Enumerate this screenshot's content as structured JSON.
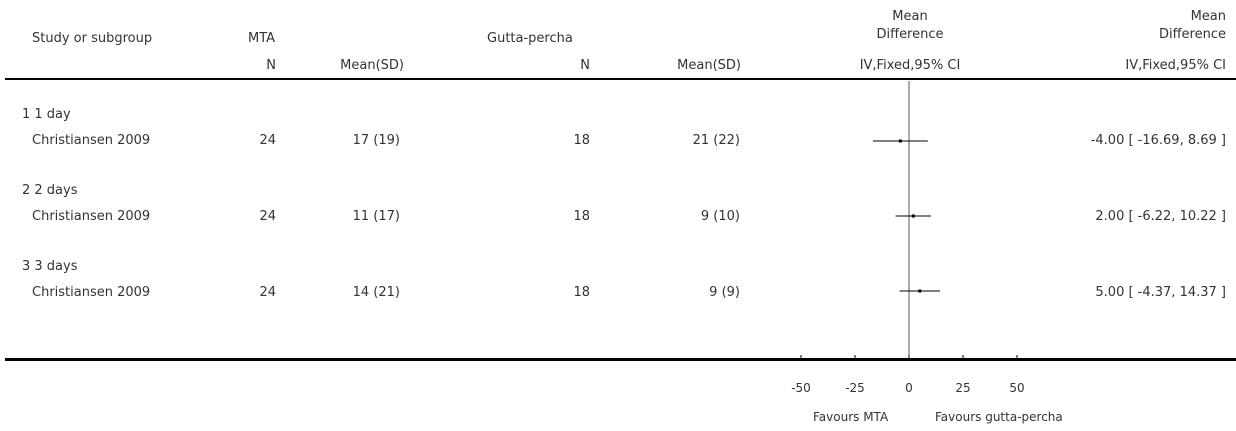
{
  "header": {
    "study_col": "Study or subgroup",
    "group1": "MTA",
    "group2": "Gutta-percha",
    "md_plot_title_1": "Mean",
    "md_plot_title_2": "Difference",
    "md_text_title_1": "Mean",
    "md_text_title_2": "Difference",
    "n1": "N",
    "mean1": "Mean(SD)",
    "n2": "N",
    "mean2": "Mean(SD)",
    "method_plot": "IV,Fixed,95% CI",
    "method_text": "IV,Fixed,95% CI"
  },
  "subgroups": [
    {
      "label": "1 1 day",
      "study": "Christiansen 2009",
      "n1": "24",
      "mean1": "17 (19)",
      "n2": "18",
      "mean2": "21 (22)",
      "ci_text": "-4.00 [ -16.69, 8.69 ]"
    },
    {
      "label": "2 2 days",
      "study": "Christiansen 2009",
      "n1": "24",
      "mean1": "11 (17)",
      "n2": "18",
      "mean2": "9 (10)",
      "ci_text": "2.00 [ -6.22, 10.22 ]"
    },
    {
      "label": "3 3 days",
      "study": "Christiansen 2009",
      "n1": "24",
      "mean1": "14 (21)",
      "n2": "18",
      "mean2": "9 (9)",
      "ci_text": "5.00 [ -4.37, 14.37 ]"
    }
  ],
  "footer": {
    "favours_left": "Favours MTA",
    "favours_right": "Favours gutta-percha"
  },
  "chart_data": {
    "type": "forest",
    "xlim": [
      -50,
      50
    ],
    "ticks": [
      -50,
      -25,
      0,
      25,
      50
    ],
    "tick_labels": [
      "-50",
      "-25",
      "0",
      "25",
      "50"
    ],
    "estimates": [
      {
        "md": -4.0,
        "lo": -16.69,
        "hi": 8.69
      },
      {
        "md": 2.0,
        "lo": -6.22,
        "hi": 10.22
      },
      {
        "md": 5.0,
        "lo": -4.37,
        "hi": 14.37
      }
    ]
  }
}
